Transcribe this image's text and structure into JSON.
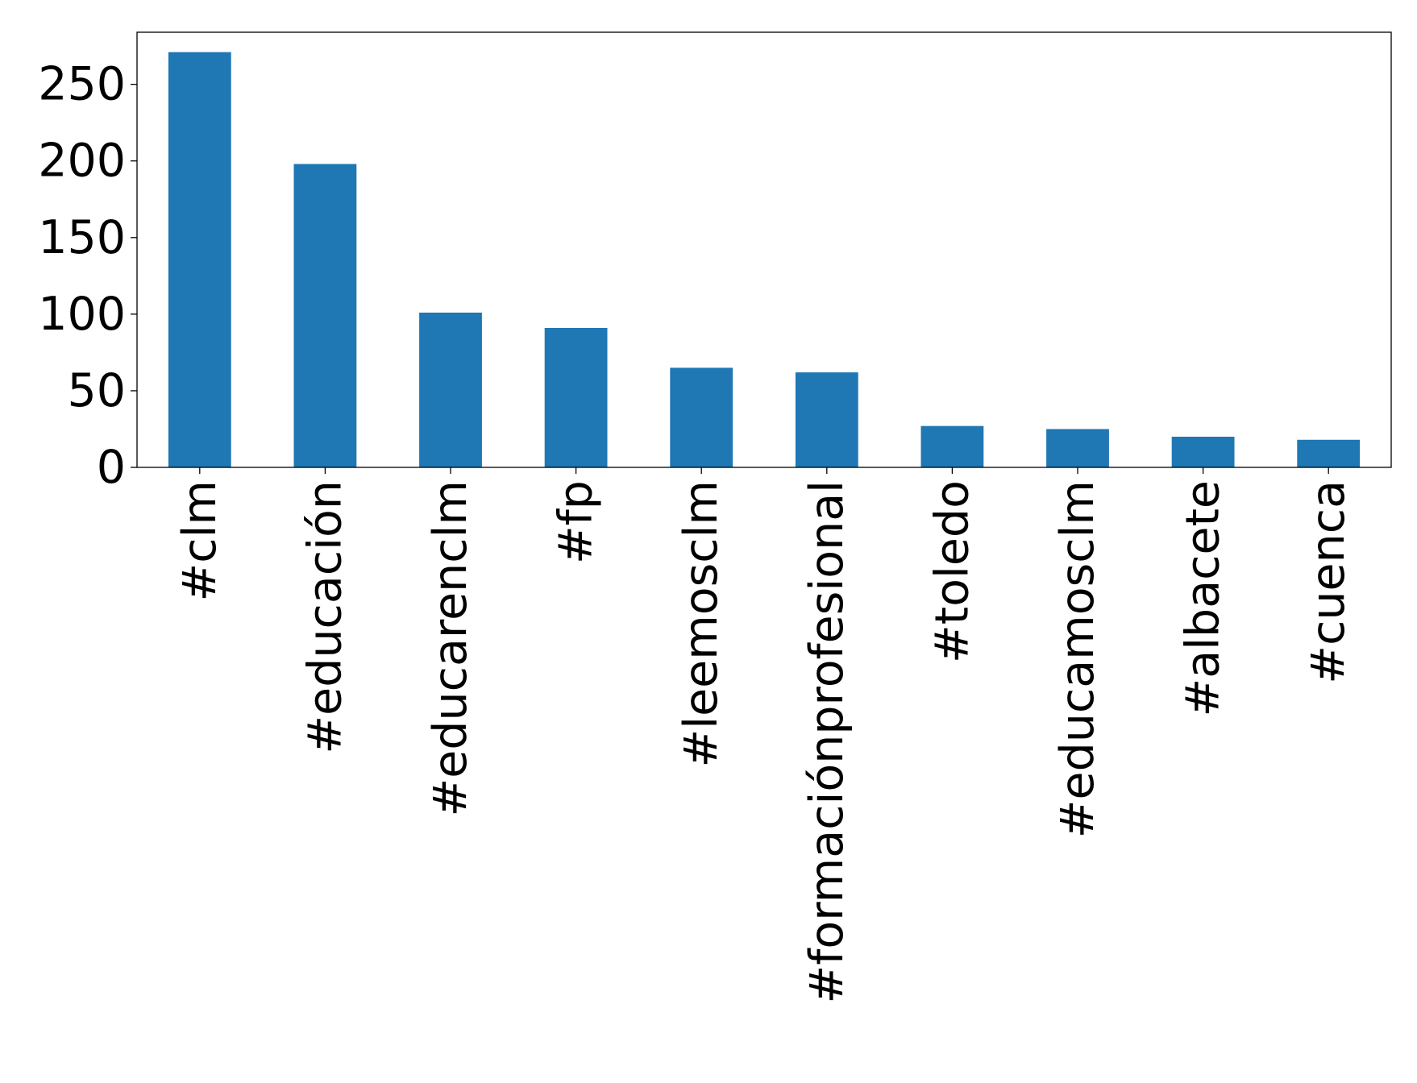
{
  "chart_data": {
    "type": "bar",
    "title": "",
    "xlabel": "",
    "ylabel": "",
    "categories": [
      "#clm",
      "#educación",
      "#educarenclm",
      "#fp",
      "#leemosclm",
      "#formaciónprofesional",
      "#toledo",
      "#educamosclm",
      "#albacete",
      "#cuenca"
    ],
    "values": [
      271,
      198,
      101,
      91,
      65,
      62,
      27,
      25,
      20,
      18
    ],
    "ylim": [
      0,
      284
    ],
    "yticks": [
      0,
      50,
      100,
      150,
      200,
      250
    ],
    "ytick_labels": [
      "0",
      "50",
      "100",
      "150",
      "200",
      "250"
    ],
    "grid": false,
    "legend": "none",
    "bar_color": "#1f77b4"
  }
}
